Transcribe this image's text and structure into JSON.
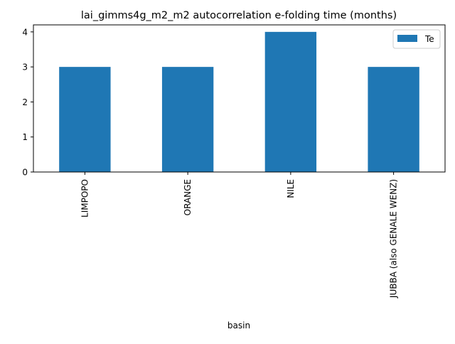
{
  "chart_data": {
    "type": "bar",
    "title": "lai_gimms4g_m2_m2 autocorrelation e-folding time (months)",
    "xlabel": "basin",
    "ylabel": "",
    "categories": [
      "LIMPOPO",
      "ORANGE",
      "NILE",
      "JUBBA (also GENALE WENZ)"
    ],
    "series": [
      {
        "name": "Te",
        "values": [
          3,
          3,
          4,
          3
        ],
        "color": "#1f77b4"
      }
    ],
    "ylim": [
      0,
      4.2
    ],
    "yticks": [
      0,
      1,
      2,
      3,
      4
    ],
    "grid": false,
    "legend_position": "top-right"
  }
}
